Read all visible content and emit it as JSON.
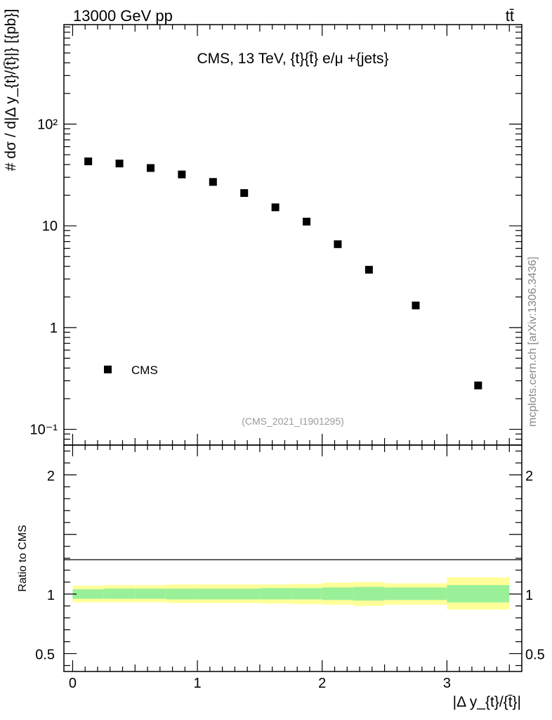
{
  "header": {
    "energy_label": "13000 GeV pp",
    "process_label": "tt̄"
  },
  "watermark": "mcplots.cern.ch [arXiv:1306.3436]",
  "colors": {
    "band_outer": "#ffff99",
    "band_inner": "#99f099",
    "marker": "#000000",
    "analysis_id": "#999999"
  },
  "chart_data": {
    "type": "scatter",
    "title": "CMS, 13 TeV, {t}{t̄} e/μ +{jets}",
    "analysis_id": "(CMS_2021_I1901295)",
    "xlabel": "|Δ y_{t}/{t̄}|",
    "ylabel": "# dσ / d|Δ y_{t}/{t̄}|} [{pb}]",
    "ratio_ylabel": "Ratio to CMS",
    "yscale": "log",
    "xlim": [
      -0.07,
      3.6
    ],
    "ylim": [
      0.07,
      950
    ],
    "ratio_ylim": [
      0.35,
      2.25
    ],
    "x_ticks": [
      "0",
      "1",
      "2",
      "3"
    ],
    "x_tick_values": [
      0,
      1,
      2,
      3
    ],
    "y_ticks": [
      "10⁻¹",
      "1",
      "10",
      "10²"
    ],
    "y_tick_values": [
      0.1,
      1,
      10,
      100
    ],
    "ratio_ticks": [
      "0.5",
      "1",
      "2"
    ],
    "ratio_tick_values": [
      0.5,
      1,
      2
    ],
    "legend": [
      {
        "name": "CMS",
        "marker": "square",
        "position": "lower-left"
      }
    ],
    "series": [
      {
        "name": "CMS",
        "x": [
          0.125,
          0.375,
          0.625,
          0.875,
          1.125,
          1.375,
          1.625,
          1.875,
          2.125,
          2.375,
          2.75,
          3.25
        ],
        "values": [
          43,
          41,
          37,
          32,
          27,
          21,
          15.2,
          11,
          6.6,
          3.7,
          1.65,
          0.27
        ]
      }
    ],
    "ratio_bands": [
      {
        "x0": 0.0,
        "x1": 0.25,
        "inner": [
          0.96,
          1.04
        ],
        "outer": [
          0.93,
          1.07
        ]
      },
      {
        "x0": 0.25,
        "x1": 0.5,
        "inner": [
          0.96,
          1.045
        ],
        "outer": [
          0.93,
          1.075
        ]
      },
      {
        "x0": 0.5,
        "x1": 0.75,
        "inner": [
          0.96,
          1.045
        ],
        "outer": [
          0.93,
          1.075
        ]
      },
      {
        "x0": 0.75,
        "x1": 1.0,
        "inner": [
          0.955,
          1.045
        ],
        "outer": [
          0.925,
          1.08
        ]
      },
      {
        "x0": 1.0,
        "x1": 1.25,
        "inner": [
          0.955,
          1.045
        ],
        "outer": [
          0.925,
          1.08
        ]
      },
      {
        "x0": 1.25,
        "x1": 1.5,
        "inner": [
          0.955,
          1.045
        ],
        "outer": [
          0.925,
          1.08
        ]
      },
      {
        "x0": 1.5,
        "x1": 1.75,
        "inner": [
          0.955,
          1.05
        ],
        "outer": [
          0.92,
          1.08
        ]
      },
      {
        "x0": 1.75,
        "x1": 2.0,
        "inner": [
          0.955,
          1.05
        ],
        "outer": [
          0.915,
          1.085
        ]
      },
      {
        "x0": 2.0,
        "x1": 2.25,
        "inner": [
          0.95,
          1.055
        ],
        "outer": [
          0.91,
          1.095
        ]
      },
      {
        "x0": 2.25,
        "x1": 2.5,
        "inner": [
          0.945,
          1.06
        ],
        "outer": [
          0.9,
          1.1
        ]
      },
      {
        "x0": 2.5,
        "x1": 3.0,
        "inner": [
          0.95,
          1.055
        ],
        "outer": [
          0.91,
          1.09
        ]
      },
      {
        "x0": 3.0,
        "x1": 3.5,
        "inner": [
          0.93,
          1.075
        ],
        "outer": [
          0.87,
          1.14
        ]
      }
    ]
  }
}
